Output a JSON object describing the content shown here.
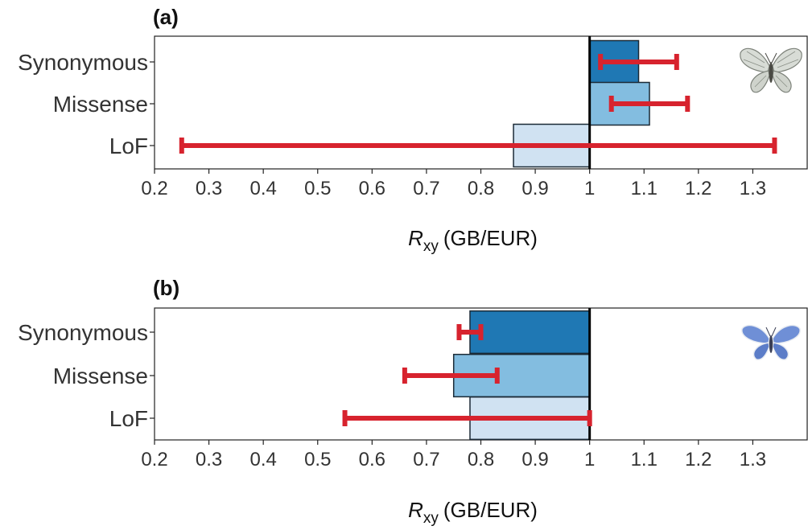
{
  "colors": {
    "synonymous": "#1f78b4",
    "missense": "#83bde0",
    "lof": "#d0e2f2",
    "error_bar": "#d7232e",
    "reference_line": "#000000"
  },
  "chart_data": [
    {
      "type": "bar",
      "panel": "(a)",
      "orientation": "horizontal",
      "baseline": 1,
      "categories": [
        "Synonymous",
        "Missense",
        "LoF"
      ],
      "values": [
        1.09,
        1.11,
        0.86
      ],
      "ci_low": [
        1.02,
        1.04,
        0.25
      ],
      "ci_high": [
        1.16,
        1.18,
        1.34
      ],
      "xlabel": "R",
      "xlabel_sub": "xy",
      "xlabel_suffix": "(GB/EUR)",
      "xlim": [
        0.2,
        1.4
      ],
      "xticks": [
        0.2,
        0.3,
        0.4,
        0.5,
        0.6,
        0.7,
        0.8,
        0.9,
        1,
        1.1,
        1.2,
        1.3
      ],
      "xtick_labels": [
        "0.2",
        "0.3",
        "0.4",
        "0.5",
        "0.6",
        "0.7",
        "0.8",
        "0.9",
        "1",
        "1.1",
        "1.2",
        "1.3"
      ],
      "grid": false,
      "icon": "grey-white-butterfly-icon"
    },
    {
      "type": "bar",
      "panel": "(b)",
      "orientation": "horizontal",
      "baseline": 1,
      "categories": [
        "Synonymous",
        "Missense",
        "LoF"
      ],
      "values": [
        0.78,
        0.75,
        0.78
      ],
      "ci_low": [
        0.76,
        0.66,
        0.55
      ],
      "ci_high": [
        0.8,
        0.83,
        1.0
      ],
      "xlabel": "R",
      "xlabel_sub": "xy",
      "xlabel_suffix": "(GB/EUR)",
      "xlim": [
        0.2,
        1.4
      ],
      "xticks": [
        0.2,
        0.3,
        0.4,
        0.5,
        0.6,
        0.7,
        0.8,
        0.9,
        1,
        1.1,
        1.2,
        1.3
      ],
      "xtick_labels": [
        "0.2",
        "0.3",
        "0.4",
        "0.5",
        "0.6",
        "0.7",
        "0.8",
        "0.9",
        "1",
        "1.1",
        "1.2",
        "1.3"
      ],
      "grid": false,
      "icon": "blue-butterfly-icon"
    }
  ]
}
